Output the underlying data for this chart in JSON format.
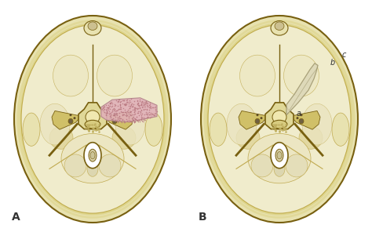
{
  "bg_color": "#ffffff",
  "label_A": "A",
  "label_B": "B",
  "label_a": "a",
  "label_b": "b",
  "label_c": "c",
  "skull_outer": "#e8e2b0",
  "skull_ring": "#c8b840",
  "skull_fill": "#f0eccc",
  "skull_mid": "#e0d898",
  "dark": "#a08820",
  "darker": "#786010",
  "shadow": "#c0aa50",
  "tumor_fill": "#e0b0b8",
  "tumor_dot": "#b87880",
  "flap_fill": "#ddd8b8",
  "flap_edge": "#a09870",
  "foramen_white": "#ffffff",
  "sella_color": "#d4c870",
  "font_size_AB": 10,
  "font_size_abc": 7
}
